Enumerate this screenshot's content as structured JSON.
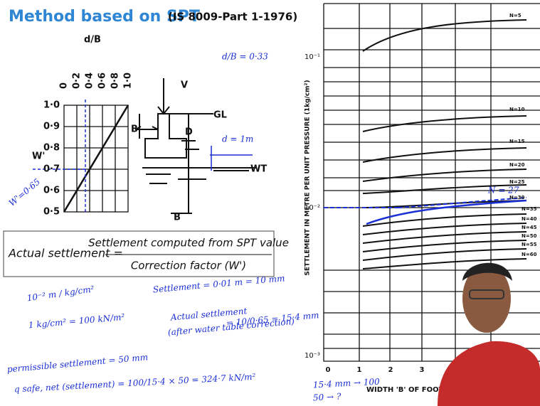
{
  "header": {
    "title": "Method based on SPT",
    "standard": "(IS 8009-Part 1-1976)"
  },
  "correction_chart": {
    "top_axis_label": "d/B",
    "top_ticks": [
      "0",
      "0·2",
      "0·4",
      "0·6",
      "0·8",
      "1·0"
    ],
    "left_ticks": [
      "1·0",
      "0·9",
      "0·8",
      "0·7",
      "0·6",
      "0·5"
    ],
    "y_label": "W'",
    "note": "W'=0·65",
    "ratio_note": "d/B = 0·33"
  },
  "footing_sketch": {
    "load": "V",
    "width": "B",
    "depth": "D",
    "ground": "GL",
    "depth_note": "d = 1m",
    "water_table": "WT",
    "bottom": "B"
  },
  "formula": {
    "lhs": "Actual settlement =",
    "numerator": "Settlement computed from SPT value",
    "denominator": "Correction factor (W')"
  },
  "notes": [
    "10⁻² m / kg/cm²",
    "Settlement = 0·01 m = 10 mm",
    "1 kg/cm² = 100 kN/m²",
    "Actual settlement",
    "(after water table correction)",
    "= 10/0·65 = 15·4 mm",
    "permissible settlement = 50 mm",
    "q safe, net (settlement) = 100/15·4 × 50 = 324·7 kN/m²",
    "15·4 mm → 100",
    "50 → ?",
    "N = 27"
  ],
  "settlement_chart": {
    "y_label": "SETTLEMENT IN METRE PER UNIT PRESSURE (1kg/cm²)",
    "x_label": "WIDTH 'B' OF FOOTING",
    "y_ticks": [
      "10⁻¹",
      "10⁻²",
      "10⁻³"
    ],
    "x_ticks": [
      "0",
      "1",
      "2",
      "3"
    ],
    "curve_labels": [
      "N=5",
      "N=10",
      "N=15",
      "N=20",
      "N=25",
      "N=30",
      "N=35",
      "N=40",
      "N=45",
      "N=50",
      "N=55",
      "N=60"
    ]
  }
}
